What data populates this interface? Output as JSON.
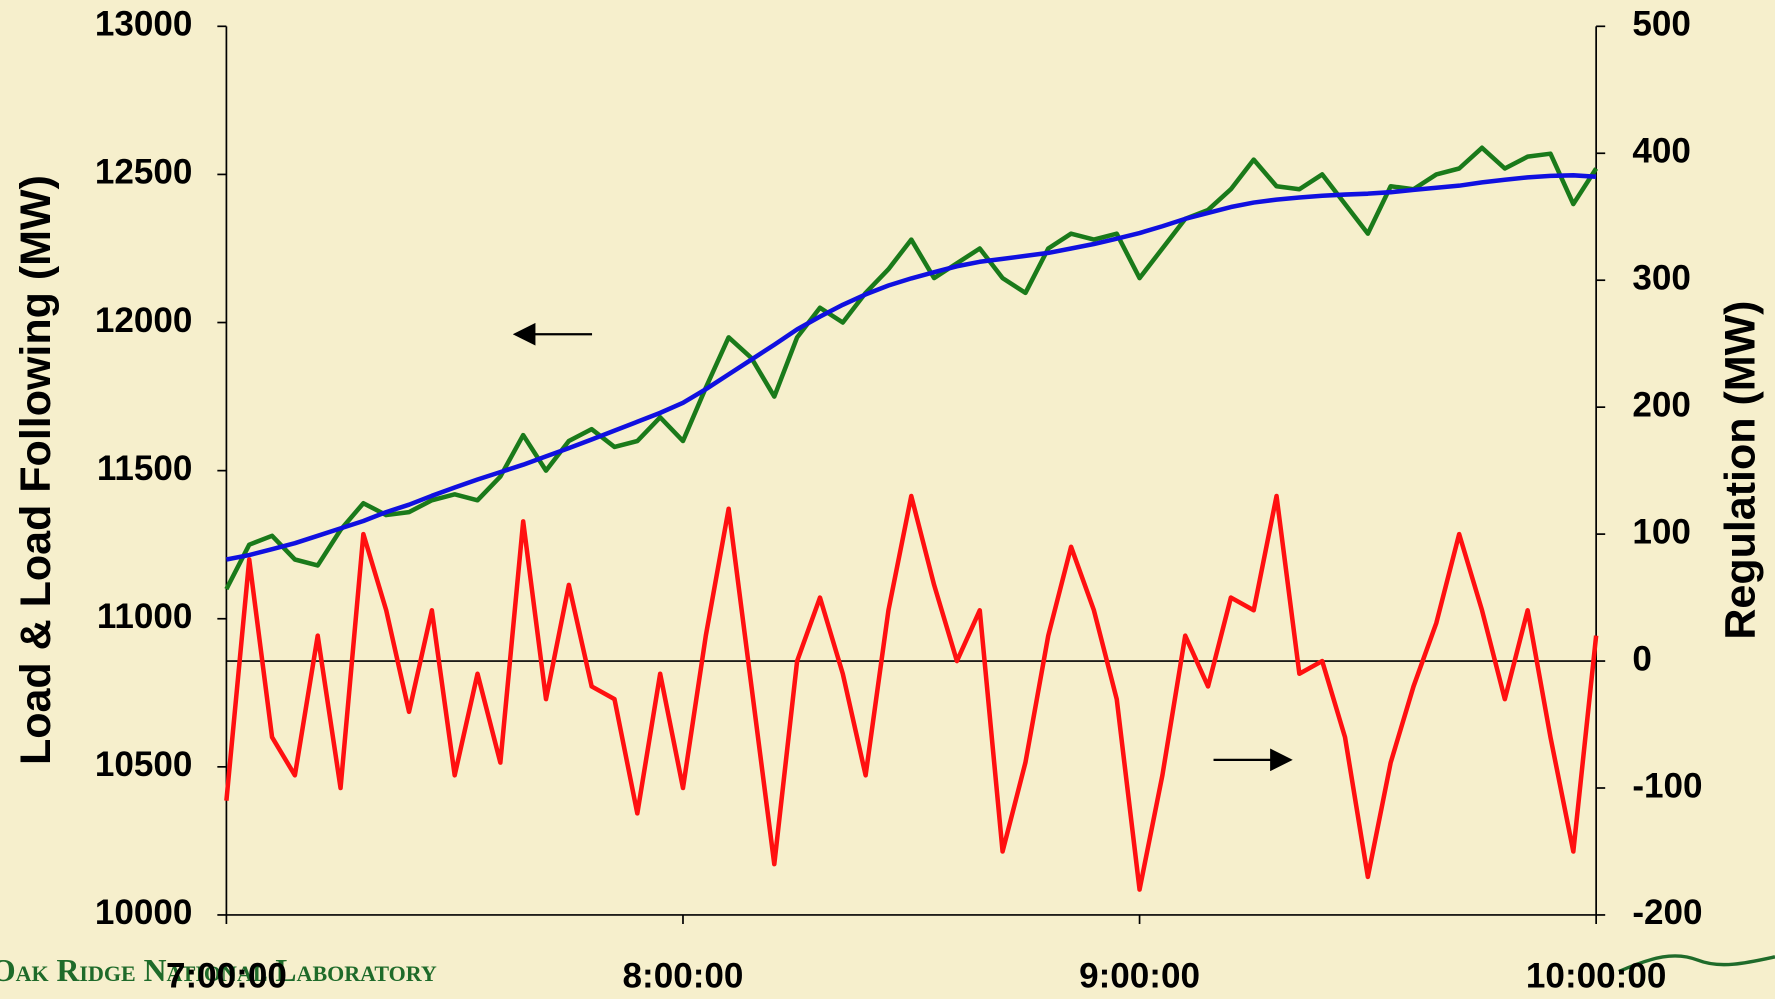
{
  "chart_data": {
    "type": "line",
    "ylabel": "Load & Load Following (MW)",
    "y2label": "Regulation (MW)",
    "footer": "Oak Ridge National Laboratory",
    "x": [
      7,
      7.05,
      7.1,
      7.15,
      7.2,
      7.25,
      7.3,
      7.35,
      7.4,
      7.45,
      7.5,
      7.55,
      7.6,
      7.65,
      7.7,
      7.75,
      7.8,
      7.85,
      7.9,
      7.95,
      8,
      8.05,
      8.1,
      8.15,
      8.2,
      8.25,
      8.3,
      8.35,
      8.4,
      8.45,
      8.5,
      8.55,
      8.6,
      8.65,
      8.7,
      8.75,
      8.8,
      8.85,
      8.9,
      8.95,
      9,
      9.05,
      9.1,
      9.15,
      9.2,
      9.25,
      9.3,
      9.35,
      9.4,
      9.45,
      9.5,
      9.55,
      9.6,
      9.65,
      9.7,
      9.75,
      9.8,
      9.85,
      9.9,
      9.95,
      10
    ],
    "xlim": [
      7,
      10
    ],
    "xticks": [
      {
        "value": 7,
        "label": "7:00:00"
      },
      {
        "value": 8,
        "label": "8:00:00"
      },
      {
        "value": 9,
        "label": "9:00:00"
      },
      {
        "value": 10,
        "label": "10:00:00"
      }
    ],
    "ylim": [
      10000,
      13000
    ],
    "yticks": [
      10000,
      10500,
      11000,
      11500,
      12000,
      12500,
      13000
    ],
    "y2lim": [
      -200,
      500
    ],
    "y2ticks": [
      -200,
      -100,
      0,
      100,
      200,
      300,
      400,
      500
    ],
    "series": [
      {
        "color": "#1a7a1a",
        "values": [
          11100,
          11250,
          11280,
          11200,
          11180,
          11300,
          11390,
          11350,
          11360,
          11400,
          11420,
          11400,
          11480,
          11620,
          11500,
          11600,
          11640,
          11580,
          11600,
          11680,
          11600,
          11780,
          11950,
          11880,
          11750,
          11950,
          12050,
          12000,
          12100,
          12180,
          12280,
          12150,
          12200,
          12250,
          12150,
          12100,
          12250,
          12300,
          12280,
          12300,
          12150,
          12250,
          12350,
          12380,
          12450,
          12550,
          12460,
          12450,
          12500,
          12400,
          12300,
          12460,
          12450,
          12500,
          12520,
          12590,
          12520,
          12560,
          12570,
          12400,
          12520
        ]
      },
      {
        "color": "#1010e0",
        "values": [
          11200,
          11215,
          11235,
          11255,
          11280,
          11305,
          11330,
          11360,
          11385,
          11415,
          11443,
          11470,
          11495,
          11520,
          11548,
          11576,
          11605,
          11635,
          11665,
          11695,
          11729,
          11775,
          11825,
          11875,
          11925,
          11977,
          12020,
          12060,
          12095,
          12125,
          12149,
          12170,
          12190,
          12205,
          12215,
          12225,
          12235,
          12250,
          12265,
          12283,
          12302,
          12325,
          12350,
          12370,
          12390,
          12405,
          12415,
          12422,
          12428,
          12432,
          12435,
          12440,
          12448,
          12455,
          12462,
          12473,
          12482,
          12490,
          12495,
          12497,
          12492
        ]
      },
      {
        "color": "#ff1010",
        "axis": "y2",
        "values": [
          -110,
          80,
          -60,
          -90,
          20,
          -100,
          100,
          40,
          -40,
          40,
          -90,
          -10,
          -80,
          110,
          -30,
          60,
          -20,
          -30,
          -120,
          -10,
          -100,
          20,
          120,
          -20,
          -160,
          0,
          50,
          -10,
          -90,
          40,
          130,
          60,
          0,
          40,
          -150,
          -80,
          20,
          90,
          40,
          -30,
          -180,
          -90,
          20,
          -20,
          50,
          40,
          130,
          -10,
          0,
          -60,
          -170,
          -80,
          -20,
          30,
          100,
          40,
          -30,
          40,
          -60,
          -150,
          20
        ]
      }
    ]
  }
}
